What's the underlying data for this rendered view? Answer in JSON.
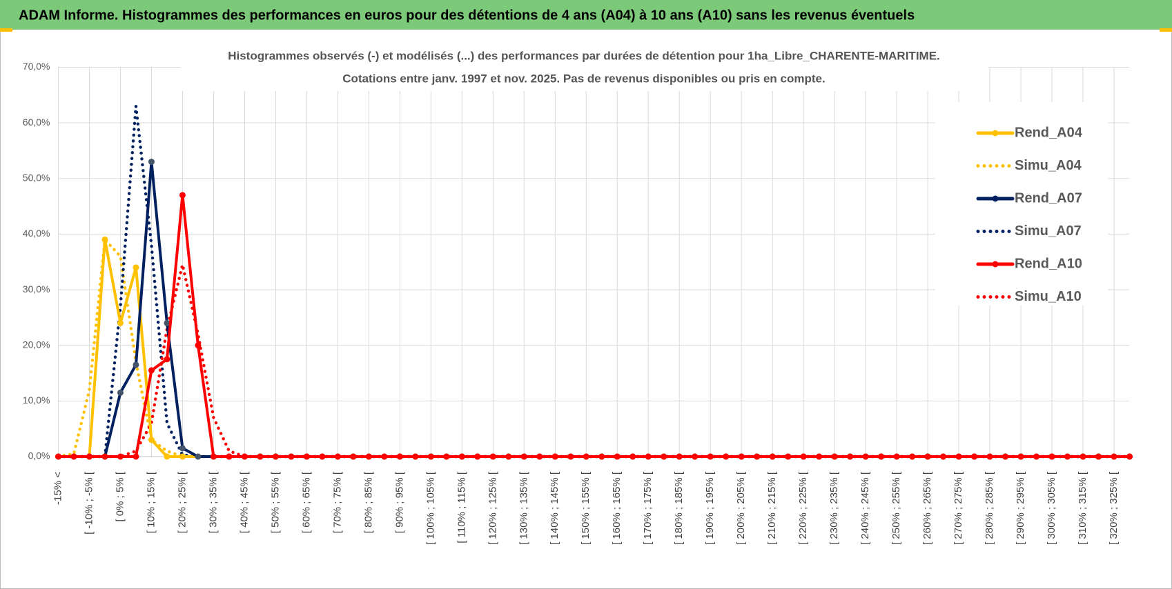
{
  "header": {
    "title": "ADAM Informe. Histogrammes des performances en euros pour des détentions de 4 ans (A04) à 10 ans (A10) sans les revenus éventuels"
  },
  "chart_data": {
    "type": "line",
    "title": "Histogrammes observés (-) et modélisés (...) des performances par durées de détention pour 1ha_Libre_CHARENTE-MARITIME.",
    "subtitle": "Cotations entre janv. 1997 et nov. 2025. Pas de revenus disponibles ou pris en compte.",
    "categories": [
      "-15% <",
      null,
      "[ -10% ; -5% [",
      null,
      "[ 0% ; 5% [",
      null,
      "[ 10% ; 15% [",
      null,
      "[ 20% ; 25% [",
      null,
      "[ 30% ; 35% [",
      null,
      "[ 40% ; 45% [",
      null,
      "[ 50% ; 55% [",
      null,
      "[ 60% ; 65% [",
      null,
      "[ 70% ; 75% [",
      null,
      "[ 80% ; 85% [",
      null,
      "[ 90% ; 95% [",
      null,
      "[ 100% ; 105% [",
      null,
      "[ 110% ; 115% [",
      null,
      "[ 120% ; 125% [",
      null,
      "[ 130% ; 135% [",
      null,
      "[ 140% ; 145% [",
      null,
      "[ 150% ; 155% [",
      null,
      "[ 160% ; 165% [",
      null,
      "[ 170% ; 175% [",
      null,
      "[ 180% ; 185% [",
      null,
      "[ 190% ; 195% [",
      null,
      "[ 200% ; 205% [",
      null,
      "[ 210% ; 215% [",
      null,
      "[ 220% ; 225% [",
      null,
      "[ 230% ; 235% [",
      null,
      "[ 240% ; 245% [",
      null,
      "[ 250% ; 255% [",
      null,
      "[ 260% ; 265% [",
      null,
      "[ 270% ; 275% [",
      null,
      "[ 280% ; 285% [",
      null,
      "[ 290% ; 295% [",
      null,
      "[ 300% ; 305% [",
      null,
      "[ 310% ; 315% [",
      null,
      "[ 320% ; 325% [",
      null
    ],
    "series": [
      {
        "name": "Rend_A04",
        "color": "#ffc000",
        "style": "solid",
        "marker": true,
        "values": [
          0,
          0,
          0,
          39,
          24,
          34,
          3,
          0,
          0,
          0,
          0,
          0,
          0,
          0,
          0,
          0,
          0,
          0,
          0,
          0,
          0,
          0,
          0,
          0,
          0,
          0,
          0,
          0,
          0,
          0,
          0,
          0,
          0,
          0,
          0,
          0,
          0,
          0,
          0,
          0,
          0,
          0,
          0,
          0,
          0,
          0,
          0,
          0,
          0,
          0,
          0,
          0,
          0,
          0,
          0,
          0,
          0,
          0,
          0,
          0,
          0,
          0,
          0,
          0,
          0,
          0,
          0,
          0,
          0,
          0
        ]
      },
      {
        "name": "Simu_A04",
        "color": "#ffc000",
        "style": "dotted",
        "marker": false,
        "values": [
          0,
          0.5,
          12,
          39,
          36,
          17,
          3,
          1,
          0,
          0,
          0,
          0,
          0,
          0,
          0,
          0,
          0,
          0,
          0,
          0,
          0,
          0,
          0,
          0,
          0,
          0,
          0,
          0,
          0,
          0,
          0,
          0,
          0,
          0,
          0,
          0,
          0,
          0,
          0,
          0,
          0,
          0,
          0,
          0,
          0,
          0,
          0,
          0,
          0,
          0,
          0,
          0,
          0,
          0,
          0,
          0,
          0,
          0,
          0,
          0,
          0,
          0,
          0,
          0,
          0,
          0,
          0,
          0,
          0,
          0
        ]
      },
      {
        "name": "Rend_A07",
        "color": "#002060",
        "style": "solid",
        "marker": true,
        "values": [
          0,
          0,
          0,
          0,
          11.5,
          16.5,
          53,
          24,
          1.5,
          0,
          0,
          0,
          0,
          0,
          0,
          0,
          0,
          0,
          0,
          0,
          0,
          0,
          0,
          0,
          0,
          0,
          0,
          0,
          0,
          0,
          0,
          0,
          0,
          0,
          0,
          0,
          0,
          0,
          0,
          0,
          0,
          0,
          0,
          0,
          0,
          0,
          0,
          0,
          0,
          0,
          0,
          0,
          0,
          0,
          0,
          0,
          0,
          0,
          0,
          0,
          0,
          0,
          0,
          0,
          0,
          0,
          0,
          0,
          0,
          0
        ]
      },
      {
        "name": "Simu_A07",
        "color": "#002060",
        "style": "dotted",
        "marker": false,
        "values": [
          0,
          0,
          0,
          0,
          27,
          63,
          38,
          6,
          0.3,
          0,
          0,
          0,
          0,
          0,
          0,
          0,
          0,
          0,
          0,
          0,
          0,
          0,
          0,
          0,
          0,
          0,
          0,
          0,
          0,
          0,
          0,
          0,
          0,
          0,
          0,
          0,
          0,
          0,
          0,
          0,
          0,
          0,
          0,
          0,
          0,
          0,
          0,
          0,
          0,
          0,
          0,
          0,
          0,
          0,
          0,
          0,
          0,
          0,
          0,
          0,
          0,
          0,
          0,
          0,
          0,
          0,
          0,
          0,
          0,
          0
        ]
      },
      {
        "name": "Rend_A10",
        "color": "#ff0000",
        "style": "solid",
        "marker": true,
        "values": [
          0,
          0,
          0,
          0,
          0,
          0,
          15.5,
          17.5,
          47,
          20,
          0,
          0,
          0,
          0,
          0,
          0,
          0,
          0,
          0,
          0,
          0,
          0,
          0,
          0,
          0,
          0,
          0,
          0,
          0,
          0,
          0,
          0,
          0,
          0,
          0,
          0,
          0,
          0,
          0,
          0,
          0,
          0,
          0,
          0,
          0,
          0,
          0,
          0,
          0,
          0,
          0,
          0,
          0,
          0,
          0,
          0,
          0,
          0,
          0,
          0,
          0,
          0,
          0,
          0,
          0,
          0,
          0,
          0,
          0,
          0
        ]
      },
      {
        "name": "Simu_A10",
        "color": "#ff0000",
        "style": "dotted",
        "marker": false,
        "values": [
          0,
          0,
          0,
          0,
          0,
          1,
          6,
          23,
          34.5,
          22,
          7,
          1,
          0,
          0,
          0,
          0,
          0,
          0,
          0,
          0,
          0,
          0,
          0,
          0,
          0,
          0,
          0,
          0,
          0,
          0,
          0,
          0,
          0,
          0,
          0,
          0,
          0,
          0,
          0,
          0,
          0,
          0,
          0,
          0,
          0,
          0,
          0,
          0,
          0,
          0,
          0,
          0,
          0,
          0,
          0,
          0,
          0,
          0,
          0,
          0,
          0,
          0,
          0,
          0,
          0,
          0,
          0,
          0,
          0,
          0
        ]
      }
    ],
    "ylim": [
      0,
      70
    ],
    "yticks": [
      {
        "value": 0,
        "label": "0,0%"
      },
      {
        "value": 10,
        "label": "10,0%"
      },
      {
        "value": 20,
        "label": "20,0%"
      },
      {
        "value": 30,
        "label": "30,0%"
      },
      {
        "value": 40,
        "label": "40,0%"
      },
      {
        "value": 50,
        "label": "50,0%"
      },
      {
        "value": 60,
        "label": "60,0%"
      },
      {
        "value": 70,
        "label": "70,0%"
      }
    ],
    "grid": true,
    "legend": "right"
  }
}
